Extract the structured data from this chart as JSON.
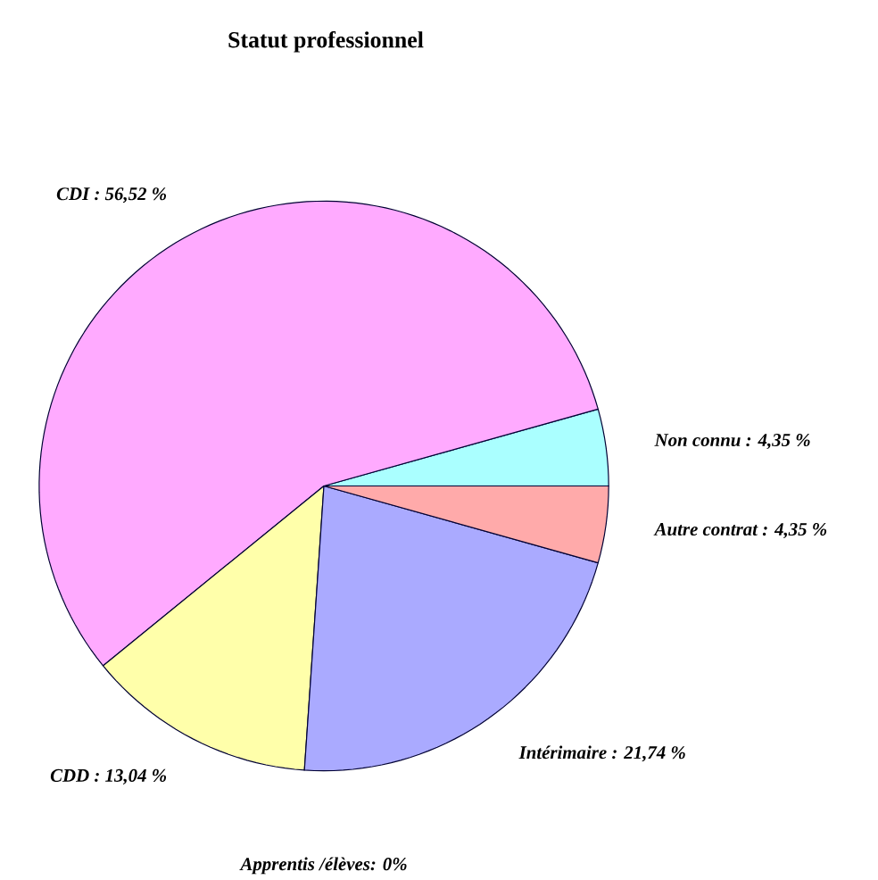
{
  "chart_data": {
    "type": "pie",
    "title": "Statut professionnel",
    "categories": [
      "Non connu : 4,35 %",
      "CDI : 56,52 %",
      "CDD : 13,04 %",
      "Intérimaire : 21,74 %",
      "Autre contrat : 4,35 %",
      "Apprentis /élèves: 0%"
    ],
    "values": [
      4.35,
      56.52,
      13.04,
      21.74,
      4.35,
      0
    ],
    "colors": [
      "#aaffff",
      "#ffaaff",
      "#ffffaa",
      "#aaaaff",
      "#ffaaaa",
      "#aaffaa"
    ]
  }
}
